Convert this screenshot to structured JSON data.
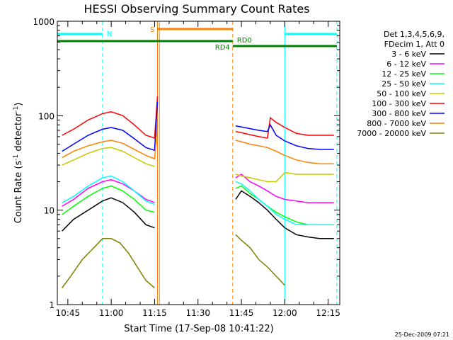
{
  "chart_data": {
    "type": "line",
    "title": "HESSI Observing Summary Count Rates",
    "xlabel": "Start Time (17-Sep-08 10:41:22)",
    "ylabel_main": "Count Rate (s",
    "ylabel_sup1": "-1",
    "ylabel_mid": " detector",
    "ylabel_sup2": "-1",
    "ylabel_end": ")",
    "x_range": [
      "10:41:22",
      "12:19:00"
    ],
    "ylim": [
      1,
      1000
    ],
    "yscale": "log",
    "x_ticks": [
      "10:45",
      "11:00",
      "11:15",
      "11:30",
      "11:45",
      "12:00",
      "12:15"
    ],
    "y_ticks": [
      "1",
      "10",
      "100",
      "1000"
    ],
    "legend": {
      "header1": "Det 1,3,4,5,6,9,",
      "header2": "FDecim 1, Att 0",
      "placement": "right"
    },
    "series": [
      {
        "name": "3 - 6 keV",
        "color": "#000000",
        "segments": [
          {
            "x": [
              "10:43",
              "10:47",
              "10:52",
              "10:57",
              "11:00",
              "11:04",
              "11:08",
              "11:12",
              "11:15"
            ],
            "y": [
              6,
              8,
              10,
              12.5,
              13.5,
              12,
              9.5,
              7,
              6.5
            ]
          },
          {
            "x": [
              "11:43",
              "11:45",
              "11:48",
              "11:51",
              "11:54",
              "11:57",
              "12:00",
              "12:04",
              "12:08",
              "12:12",
              "12:17"
            ],
            "y": [
              13,
              16,
              14,
              12,
              10,
              8,
              6.5,
              5.5,
              5.2,
              5,
              5
            ]
          }
        ]
      },
      {
        "name": "6 - 12 keV",
        "color": "#ff00ff",
        "segments": [
          {
            "x": [
              "10:43",
              "10:47",
              "10:52",
              "10:57",
              "11:00",
              "11:04",
              "11:08",
              "11:12",
              "11:15"
            ],
            "y": [
              11,
              13,
              17,
              20,
              21,
              19,
              16,
              13,
              12
            ]
          },
          {
            "x": [
              "11:43",
              "11:45",
              "11:48",
              "11:51",
              "11:54",
              "11:57",
              "12:00",
              "12:04",
              "12:08",
              "12:12",
              "12:17"
            ],
            "y": [
              22,
              24,
              20,
              18,
              16,
              14,
              13,
              12.5,
              12,
              12,
              12
            ]
          }
        ]
      },
      {
        "name": "12 - 25 keV",
        "color": "#00ff00",
        "segments": [
          {
            "x": [
              "10:43",
              "10:47",
              "10:52",
              "10:57",
              "11:00",
              "11:04",
              "11:08",
              "11:12",
              "11:15"
            ],
            "y": [
              9,
              11,
              14,
              17,
              18,
              16,
              13,
              10,
              9.5
            ]
          },
          {
            "x": [
              "11:43",
              "11:45",
              "11:48",
              "11:51",
              "11:54",
              "11:57",
              "12:00",
              "12:04",
              "12:08",
              "12:12",
              "12:17"
            ],
            "y": [
              17,
              18,
              15,
              13,
              11,
              9.5,
              8.5,
              7.5,
              7,
              7,
              7
            ]
          }
        ]
      },
      {
        "name": "25 - 50 keV",
        "color": "#00ffff",
        "segments": [
          {
            "x": [
              "10:43",
              "10:47",
              "10:52",
              "10:57",
              "11:00",
              "11:04",
              "11:08",
              "11:12",
              "11:15"
            ],
            "y": [
              12,
              14,
              18,
              22,
              23,
              20,
              16,
              12.5,
              11.5
            ]
          },
          {
            "x": [
              "11:43",
              "11:45",
              "11:48",
              "11:51",
              "11:54",
              "11:57",
              "12:00",
              "12:04",
              "12:08",
              "12:12",
              "12:17"
            ],
            "y": [
              20,
              19,
              16,
              13,
              11,
              9,
              8,
              7,
              7,
              7,
              7
            ]
          }
        ]
      },
      {
        "name": "50 - 100 keV",
        "color": "#c8c800",
        "segments": [
          {
            "x": [
              "10:43",
              "10:47",
              "10:52",
              "10:57",
              "11:00",
              "11:04",
              "11:08",
              "11:12",
              "11:15"
            ],
            "y": [
              30,
              34,
              40,
              45,
              46,
              42,
              36,
              31,
              29
            ]
          },
          {
            "x": [
              "11:43",
              "11:45",
              "11:48",
              "11:51",
              "11:54",
              "11:57",
              "12:00",
              "12:04",
              "12:08",
              "12:12",
              "12:17"
            ],
            "y": [
              24,
              23,
              22,
              21,
              20,
              20,
              25,
              24,
              24,
              24,
              24
            ]
          }
        ]
      },
      {
        "name": "100 - 300 keV",
        "color": "#ff0000",
        "segments": [
          {
            "x": [
              "10:43",
              "10:47",
              "10:52",
              "10:57",
              "11:00",
              "11:04",
              "11:08",
              "11:12",
              "11:15",
              "11:16"
            ],
            "y": [
              62,
              72,
              90,
              105,
              110,
              100,
              80,
              62,
              58,
              160
            ]
          },
          {
            "x": [
              "11:43",
              "11:45",
              "11:48",
              "11:51",
              "11:54",
              "11:55",
              "11:57",
              "12:00",
              "12:04",
              "12:08",
              "12:12",
              "12:17"
            ],
            "y": [
              68,
              66,
              63,
              60,
              58,
              95,
              85,
              75,
              65,
              62,
              62,
              62
            ]
          }
        ]
      },
      {
        "name": "300 - 800 keV",
        "color": "#0000ff",
        "segments": [
          {
            "x": [
              "10:43",
              "10:47",
              "10:52",
              "10:57",
              "11:00",
              "11:04",
              "11:08",
              "11:12",
              "11:15",
              "11:16"
            ],
            "y": [
              42,
              50,
              62,
              72,
              75,
              70,
              57,
              46,
              43,
              140
            ]
          },
          {
            "x": [
              "11:43",
              "11:45",
              "11:48",
              "11:51",
              "11:54",
              "11:55",
              "11:57",
              "12:00",
              "12:04",
              "12:08",
              "12:12",
              "12:17"
            ],
            "y": [
              78,
              76,
              73,
              70,
              68,
              80,
              62,
              54,
              48,
              45,
              44,
              44
            ]
          }
        ]
      },
      {
        "name": "800 - 7000 keV",
        "color": "#ff8000",
        "segments": [
          {
            "x": [
              "10:43",
              "10:47",
              "10:52",
              "10:57",
              "11:00",
              "11:04",
              "11:08",
              "11:12",
              "11:15",
              "11:16"
            ],
            "y": [
              36,
              42,
              48,
              53,
              55,
              51,
              44,
              38,
              35,
              80
            ]
          },
          {
            "x": [
              "11:43",
              "11:45",
              "11:48",
              "11:51",
              "11:54",
              "11:57",
              "12:00",
              "12:04",
              "12:08",
              "12:12",
              "12:17"
            ],
            "y": [
              55,
              53,
              50,
              48,
              46,
              42,
              38,
              34,
              32,
              31,
              31
            ]
          }
        ]
      },
      {
        "name": "7000 - 20000 keV",
        "color": "#808000",
        "segments": [
          {
            "x": [
              "10:43",
              "10:46",
              "10:50",
              "10:54",
              "10:57",
              "11:00",
              "11:03",
              "11:06",
              "11:09",
              "11:12",
              "11:15"
            ],
            "y": [
              1.5,
              2,
              3,
              4,
              5,
              5,
              4.5,
              3.5,
              2.5,
              1.8,
              1.5
            ]
          },
          {
            "x": [
              "11:43",
              "11:45",
              "11:48",
              "11:51",
              "11:54",
              "11:57",
              "12:00"
            ],
            "y": [
              5.5,
              4.8,
              4,
              3,
              2.5,
              2,
              1.6
            ]
          }
        ]
      }
    ],
    "annotations": {
      "n_label": "N",
      "s_label": "S",
      "rd0_label": "RD0",
      "rd4_label": "RD4",
      "night_bars": [
        [
          "10:41:22",
          "10:57"
        ],
        [
          "12:00",
          "12:18"
        ]
      ],
      "saa_bar": [
        "11:16",
        "11:42"
      ],
      "rd_bar_left": [
        "10:41:22",
        "11:42"
      ],
      "rd_bar_right": [
        "11:50",
        "12:18"
      ],
      "rd_mid": [
        "11:42",
        "11:50"
      ],
      "night_solid": [
        "10:41:22",
        "12:00"
      ],
      "night_dashed": [
        "10:57",
        "12:18"
      ],
      "saa_solid": [
        "11:16",
        "11:16:40"
      ],
      "saa_dashed": [
        "11:42"
      ],
      "colors": {
        "night": "#00ffff",
        "saa": "#ff8000",
        "rd": "#008000"
      }
    },
    "grid": false
  },
  "footer_date": "25-Dec-2009 07:21"
}
